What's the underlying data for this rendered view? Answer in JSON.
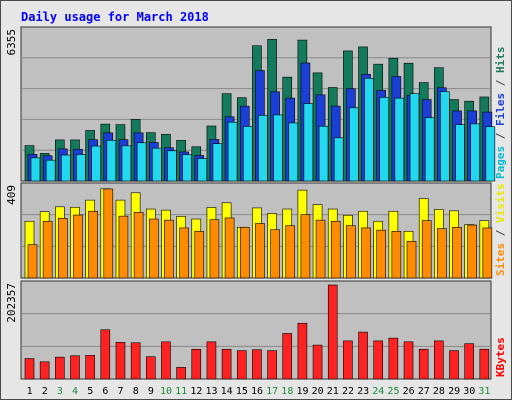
{
  "chart_data": {
    "type": "bar",
    "title": "Daily usage for March 2018",
    "categories": [
      "1",
      "2",
      "3",
      "4",
      "5",
      "6",
      "7",
      "8",
      "9",
      "10",
      "11",
      "12",
      "13",
      "14",
      "15",
      "16",
      "17",
      "18",
      "19",
      "20",
      "21",
      "22",
      "23",
      "24",
      "25",
      "26",
      "27",
      "28",
      "29",
      "30",
      "31"
    ],
    "weekend_days": [
      "3",
      "4",
      "10",
      "11",
      "17",
      "18",
      "24",
      "25",
      "31"
    ],
    "panels": [
      {
        "id": "top",
        "max_label": "6355",
        "ylim": [
          0,
          6355
        ],
        "right_label_parts": [
          {
            "text": "Pages",
            "color": "#00bcd4"
          },
          {
            "text": " / ",
            "color": "#444444"
          },
          {
            "text": "Files",
            "color": "#1a3fd6"
          },
          {
            "text": " / ",
            "color": "#444444"
          },
          {
            "text": "Hits",
            "color": "#1e7a5e"
          }
        ],
        "series": [
          {
            "name": "Hits",
            "color": "#137a5c",
            "values": [
              1500,
              1170,
              1740,
              1740,
              2140,
              2410,
              2390,
              2610,
              2050,
              1980,
              1720,
              1450,
              2330,
              3700,
              3530,
              5730,
              6000,
              4400,
              5970,
              4580,
              3960,
              5510,
              5680,
              4950,
              5200,
              4990,
              4170,
              4800,
              3450,
              3380,
              3560
            ]
          },
          {
            "name": "Files",
            "color": "#1a3fd6",
            "values": [
              1130,
              1070,
              1360,
              1340,
              1750,
              2040,
              1750,
              2040,
              1630,
              1410,
              1230,
              1080,
              1760,
              2720,
              3170,
              4680,
              3780,
              3510,
              5000,
              3650,
              3170,
              3910,
              4520,
              3840,
              4430,
              3630,
              3450,
              3950,
              2970,
              2970,
              2920
            ]
          },
          {
            "name": "Pages",
            "color": "#22d8ee",
            "values": [
              980,
              880,
              1100,
              1120,
              1480,
              1720,
              1490,
              1620,
              1390,
              1280,
              1120,
              950,
              1580,
              2490,
              2310,
              2780,
              2800,
              2460,
              3280,
              2320,
              1830,
              3100,
              4350,
              3540,
              3510,
              3700,
              2680,
              3790,
              2390,
              2420,
              2300
            ]
          }
        ]
      },
      {
        "id": "middle",
        "max_label": "409",
        "ylim": [
          0,
          409
        ],
        "right_label_parts": [
          {
            "text": "Sites",
            "color": "#ff8c00"
          },
          {
            "text": " / ",
            "color": "#444444"
          },
          {
            "text": "Visits",
            "color": "#e8e800"
          }
        ],
        "series": [
          {
            "name": "Visits",
            "color": "#ffff00",
            "values": [
              255,
              298,
              320,
              318,
              350,
              401,
              350,
              383,
              310,
              305,
              277,
              265,
              317,
              338,
              228,
              315,
              290,
              310,
              395,
              330,
              310,
              282,
              300,
              255,
              300,
              210,
              357,
              308,
              302,
              240,
              258
            ]
          },
          {
            "name": "Sites",
            "color": "#ff8c00",
            "values": [
              150,
              255,
              268,
              283,
              300,
              400,
              278,
              295,
              265,
              260,
              225,
              210,
              262,
              270,
              228,
              245,
              217,
              235,
              285,
              260,
              255,
              235,
              225,
              215,
              210,
              165,
              258,
              222,
              228,
              238,
              225
            ]
          }
        ]
      },
      {
        "id": "bottom",
        "max_label": "202357",
        "ylim": [
          0,
          202357
        ],
        "right_label_parts": [
          {
            "text": "KBytes",
            "color": "#ff0000"
          }
        ],
        "series": [
          {
            "name": "KBytes",
            "color": "#ff2222",
            "values": [
              44000,
              37000,
              47000,
              50000,
              51000,
              106000,
              79000,
              78000,
              48000,
              80000,
              25000,
              64000,
              80000,
              64000,
              61000,
              63000,
              61000,
              98000,
              120000,
              73000,
              202357,
              82000,
              101000,
              82000,
              88000,
              80000,
              64000,
              82000,
              61000,
              76000,
              64000
            ]
          }
        ]
      }
    ]
  }
}
